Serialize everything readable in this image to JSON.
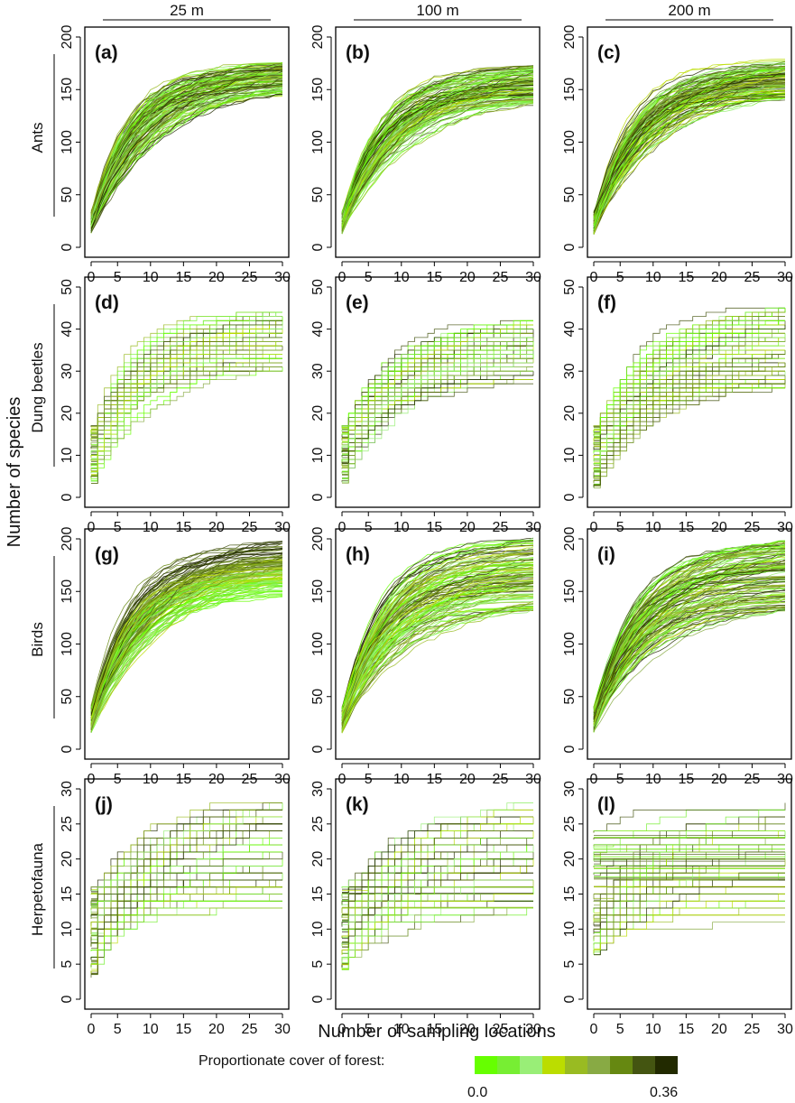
{
  "figure": {
    "column_labels": [
      "25 m",
      "100 m",
      "200 m"
    ],
    "row_labels": [
      "Ants",
      "Dung beetles",
      "Birds",
      "Herpetofauna"
    ],
    "ylabel": "Number of species",
    "xlabel": "Number of sampling locations",
    "legend": {
      "title": "Proportionate cover of forest:",
      "min_label": "0.0",
      "max_label": "0.36",
      "colors": [
        "#66ff00",
        "#77ee33",
        "#99ee77",
        "#bbdd00",
        "#99bb22",
        "#88aa44",
        "#668811",
        "#445511",
        "#222a00"
      ]
    }
  },
  "chart_data": [
    {
      "type": "line",
      "panel": "(a)",
      "taxon": "Ants",
      "buffer": "25 m",
      "xlim": [
        1,
        30
      ],
      "ylim": [
        0,
        200
      ],
      "x_ticks": [
        0,
        5,
        10,
        15,
        20,
        25,
        30
      ],
      "y_ticks": [
        0,
        50,
        100,
        150,
        200
      ],
      "curve_count": 120,
      "series_summary": {
        "start_range": [
          12,
          33
        ],
        "end_range": [
          143,
          175
        ],
        "style": "smooth"
      }
    },
    {
      "type": "line",
      "panel": "(b)",
      "taxon": "Ants",
      "buffer": "100 m",
      "xlim": [
        1,
        30
      ],
      "ylim": [
        0,
        200
      ],
      "x_ticks": [
        0,
        5,
        10,
        15,
        20,
        25,
        30
      ],
      "y_ticks": [
        0,
        50,
        100,
        150,
        200
      ],
      "curve_count": 120,
      "series_summary": {
        "start_range": [
          12,
          33
        ],
        "end_range": [
          135,
          172
        ],
        "style": "smooth"
      }
    },
    {
      "type": "line",
      "panel": "(c)",
      "taxon": "Ants",
      "buffer": "200 m",
      "xlim": [
        1,
        30
      ],
      "ylim": [
        0,
        200
      ],
      "x_ticks": [
        0,
        5,
        10,
        15,
        20,
        25,
        30
      ],
      "y_ticks": [
        0,
        50,
        100,
        150,
        200
      ],
      "curve_count": 120,
      "series_summary": {
        "start_range": [
          12,
          33
        ],
        "end_range": [
          140,
          178
        ],
        "style": "smooth"
      }
    },
    {
      "type": "line",
      "panel": "(d)",
      "taxon": "Dung beetles",
      "buffer": "25 m",
      "xlim": [
        1,
        30
      ],
      "ylim": [
        0,
        50
      ],
      "x_ticks": [
        0,
        5,
        10,
        15,
        20,
        25,
        30
      ],
      "y_ticks": [
        0,
        10,
        20,
        30,
        40,
        50
      ],
      "curve_count": 110,
      "series_summary": {
        "start_range": [
          3,
          17
        ],
        "end_range": [
          30,
          44
        ],
        "style": "stepped"
      }
    },
    {
      "type": "line",
      "panel": "(e)",
      "taxon": "Dung beetles",
      "buffer": "100 m",
      "xlim": [
        1,
        30
      ],
      "ylim": [
        0,
        50
      ],
      "x_ticks": [
        0,
        5,
        10,
        15,
        20,
        25,
        30
      ],
      "y_ticks": [
        0,
        10,
        20,
        30,
        40,
        50
      ],
      "curve_count": 110,
      "series_summary": {
        "start_range": [
          3,
          17
        ],
        "end_range": [
          27,
          42
        ],
        "style": "stepped"
      }
    },
    {
      "type": "line",
      "panel": "(f)",
      "taxon": "Dung beetles",
      "buffer": "200 m",
      "xlim": [
        1,
        30
      ],
      "ylim": [
        0,
        50
      ],
      "x_ticks": [
        0,
        5,
        10,
        15,
        20,
        25,
        30
      ],
      "y_ticks": [
        0,
        10,
        20,
        30,
        40,
        50
      ],
      "curve_count": 110,
      "series_summary": {
        "start_range": [
          2,
          17
        ],
        "end_range": [
          26,
          45
        ],
        "style": "stepped"
      }
    },
    {
      "type": "line",
      "panel": "(g)",
      "taxon": "Birds",
      "buffer": "25 m",
      "xlim": [
        1,
        30
      ],
      "ylim": [
        0,
        200
      ],
      "x_ticks": [
        0,
        5,
        10,
        15,
        20,
        25,
        30
      ],
      "y_ticks": [
        0,
        50,
        100,
        150,
        200
      ],
      "curve_count": 130,
      "series_summary": {
        "start_range": [
          15,
          40
        ],
        "end_range": [
          140,
          205
        ],
        "style": "smooth",
        "note": "higher forest cover curves reach higher"
      }
    },
    {
      "type": "line",
      "panel": "(h)",
      "taxon": "Birds",
      "buffer": "100 m",
      "xlim": [
        1,
        30
      ],
      "ylim": [
        0,
        200
      ],
      "x_ticks": [
        0,
        5,
        10,
        15,
        20,
        25,
        30
      ],
      "y_ticks": [
        0,
        50,
        100,
        150,
        200
      ],
      "curve_count": 130,
      "series_summary": {
        "start_range": [
          15,
          40
        ],
        "end_range": [
          130,
          200
        ],
        "style": "smooth"
      }
    },
    {
      "type": "line",
      "panel": "(i)",
      "taxon": "Birds",
      "buffer": "200 m",
      "xlim": [
        1,
        30
      ],
      "ylim": [
        0,
        200
      ],
      "x_ticks": [
        0,
        5,
        10,
        15,
        20,
        25,
        30
      ],
      "y_ticks": [
        0,
        50,
        100,
        150,
        200
      ],
      "curve_count": 130,
      "series_summary": {
        "start_range": [
          15,
          40
        ],
        "end_range": [
          130,
          198
        ],
        "style": "smooth"
      }
    },
    {
      "type": "line",
      "panel": "(j)",
      "taxon": "Herpetofauna",
      "buffer": "25 m",
      "xlim": [
        1,
        30
      ],
      "ylim": [
        0,
        30
      ],
      "x_ticks": [
        0,
        5,
        10,
        15,
        20,
        25,
        30
      ],
      "y_ticks": [
        0,
        5,
        10,
        15,
        20,
        25,
        30
      ],
      "curve_count": 90,
      "series_summary": {
        "start_range": [
          3,
          16
        ],
        "end_range": [
          12,
          28
        ],
        "style": "stepped"
      }
    },
    {
      "type": "line",
      "panel": "(k)",
      "taxon": "Herpetofauna",
      "buffer": "100 m",
      "xlim": [
        1,
        30
      ],
      "ylim": [
        0,
        30
      ],
      "x_ticks": [
        0,
        5,
        10,
        15,
        20,
        25,
        30
      ],
      "y_ticks": [
        0,
        5,
        10,
        15,
        20,
        25,
        30
      ],
      "curve_count": 90,
      "series_summary": {
        "start_range": [
          4,
          16
        ],
        "end_range": [
          12,
          28
        ],
        "style": "stepped"
      }
    },
    {
      "type": "line",
      "panel": "(l)",
      "taxon": "Herpetofauna",
      "buffer": "200 m",
      "xlim": [
        1,
        30
      ],
      "ylim": [
        0,
        30
      ],
      "x_ticks": [
        0,
        5,
        10,
        15,
        20,
        25,
        30
      ],
      "y_ticks": [
        0,
        5,
        10,
        15,
        20,
        25,
        30
      ],
      "curve_count": 90,
      "series_summary": {
        "start_range": [
          6,
          24
        ],
        "end_range": [
          10,
          27
        ],
        "style": "stepped"
      }
    }
  ]
}
